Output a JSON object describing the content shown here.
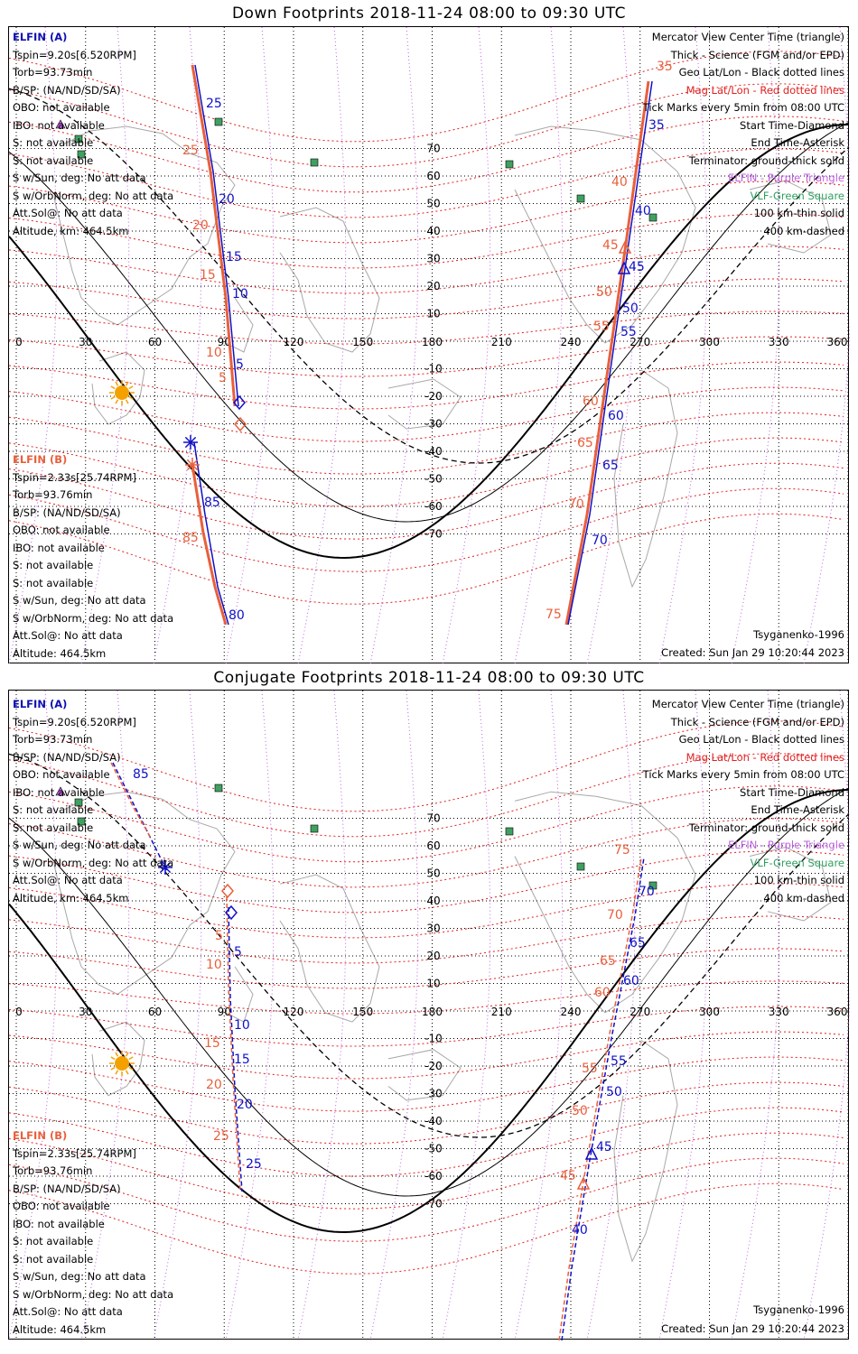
{
  "panels": [
    {
      "title": "Down Footprints 2018-11-24 08:00 to 09:30 UTC",
      "elfin_a": {
        "header": "ELFIN (A)",
        "lines": [
          "Tspin=9.20s[6.520RPM]",
          "Torb=93.73min",
          "B/SP: (NA/ND/SD/SA)",
          "OBO: not available",
          "IBO: not available",
          "S: not available",
          "S: not available",
          "S w/Sun, deg: No att data",
          "S w/OrbNorm, deg: No att data",
          "Att.Sol@: No att data",
          "Altitude, km: 464.5km"
        ]
      },
      "elfin_b": {
        "header": "ELFIN (B)",
        "lines": [
          "Tspin=2.33s[25.74RPM]",
          "Torb=93.76min",
          "B/SP: (NA/ND/SD/SA)",
          "OBO: not available",
          "IBO: not available",
          "S: not available",
          "S: not available",
          "S w/Sun, deg: No att data",
          "S w/OrbNorm, deg: No att data",
          "Att.Sol@: No att data",
          "Altitude: 464.5km"
        ]
      },
      "legend": [
        "Mercator View Center Time (triangle)",
        "Thick - Science (FGM and/or EPD)",
        "Geo Lat/Lon - Black dotted lines",
        "Mag Lat/Lon - Red dotted lines",
        "Tick Marks every 5min from 08:00 UTC",
        "Start Time-Diamond",
        "End Time-Asterisk",
        "Terminator: ground-thick solid",
        "ELFIN - Purple Triangle",
        "VLF-Green Square",
        "100 km-thin solid",
        "400 km-dashed"
      ],
      "model": "Tsyganenko-1996",
      "created": "Created: Sun Jan 29 10:20:44 2023",
      "lon_ticks": [
        "0",
        "30",
        "60",
        "90",
        "120",
        "150",
        "180",
        "210",
        "240",
        "270",
        "300",
        "330",
        "360"
      ],
      "lat_ticks": [
        "70",
        "60",
        "50",
        "40",
        "30",
        "20",
        "10",
        "-10",
        "-20",
        "-30",
        "-40",
        "-50",
        "-60",
        "-70"
      ],
      "track_labels": {
        "a_left": [
          "25",
          "20",
          "15",
          "10",
          "5"
        ],
        "b_left": [
          "25",
          "20",
          "15",
          "10",
          "5"
        ],
        "a_right": [
          "35",
          "40",
          "45",
          "50",
          "55",
          "60",
          "65",
          "70"
        ],
        "b_right": [
          "35",
          "40",
          "45",
          "50",
          "55",
          "60",
          "65",
          "70",
          "75"
        ],
        "a_low": [
          "85",
          "80"
        ],
        "b_low": [
          "85"
        ]
      }
    },
    {
      "title": "Conjugate Footprints 2018-11-24 08:00 to 09:30 UTC",
      "elfin_a": {
        "header": "ELFIN (A)",
        "lines": [
          "Tspin=9.20s[6.520RPM]",
          "Torb=93.73min",
          "B/SP: (NA/ND/SD/SA)",
          "OBO: not available",
          "IBO: not available",
          "S: not available",
          "S: not available",
          "S w/Sun, deg: No att data",
          "S w/OrbNorm, deg: No att data",
          "Att.Sol@: No att data",
          "Altitude, km: 464.5km"
        ]
      },
      "elfin_b": {
        "header": "ELFIN (B)",
        "lines": [
          "Tspin=2.33s[25.74RPM]",
          "Torb=93.76min",
          "B/SP: (NA/ND/SD/SA)",
          "OBO: not available",
          "IBO: not available",
          "S: not available",
          "S: not available",
          "S w/Sun, deg: No att data",
          "S w/OrbNorm, deg: No att data",
          "Att.Sol@: No att data",
          "Altitude: 464.5km"
        ]
      },
      "legend": [
        "Mercator View Center Time (triangle)",
        "Thick - Science (FGM and/or EPD)",
        "Geo Lat/Lon - Black dotted lines",
        "Mag Lat/Lon - Red dotted lines",
        "Tick Marks every 5min from 08:00 UTC",
        "Start Time-Diamond",
        "End Time-Asterisk",
        "Terminator: ground-thick solid",
        "ELFIN - Purple Triangle",
        "VLF-Green Square",
        "100 km-thin solid",
        "400 km-dashed"
      ],
      "model": "Tsyganenko-1996",
      "created": "Created: Sun Jan 29 10:20:44 2023",
      "lon_ticks": [
        "0",
        "30",
        "60",
        "90",
        "120",
        "150",
        "180",
        "210",
        "240",
        "270",
        "300",
        "330",
        "360"
      ],
      "lat_ticks": [
        "70",
        "60",
        "50",
        "40",
        "30",
        "20",
        "10",
        "-10",
        "-20",
        "-30",
        "-40",
        "-50",
        "-60",
        "-70"
      ],
      "track_labels": {
        "a_top": [
          "85"
        ],
        "a_left": [
          "5",
          "10",
          "15",
          "20",
          "25"
        ],
        "b_left": [
          "5",
          "10",
          "15",
          "20",
          "25"
        ],
        "a_right": [
          "70",
          "65",
          "60",
          "55",
          "50",
          "45",
          "40"
        ],
        "b_right": [
          "75",
          "70",
          "65",
          "60",
          "55",
          "50",
          "45"
        ]
      }
    }
  ],
  "colors": {
    "elfin_a": "#1010c8",
    "elfin_b": "#e8603c",
    "mag_grid": "#e02020",
    "geo_grid": "#000000",
    "elfin_marker": "#c060e0",
    "vlf": "#40a060",
    "sun": "#f4a000"
  },
  "icons": {
    "start": "diamond-icon",
    "end": "asterisk-icon",
    "elfin": "triangle-icon",
    "vlf": "square-icon",
    "sun": "sun-icon"
  }
}
